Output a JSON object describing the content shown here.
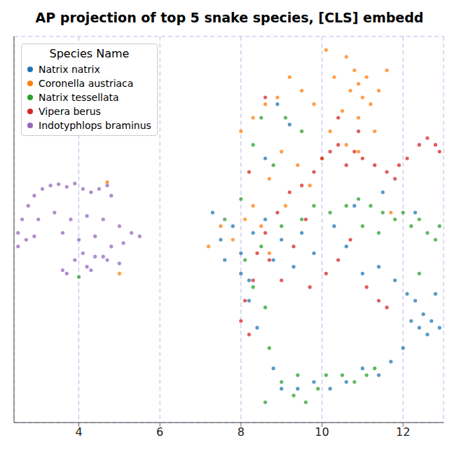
{
  "chart_data": {
    "type": "scatter",
    "title": "AP projection of top 5 snake species, [CLS] embedd",
    "legend_title": "Species Name",
    "legend": "upper left",
    "grid": true,
    "tick_labels": "x",
    "xlim": [
      2.4,
      13
    ],
    "xticks": [
      4,
      6,
      8,
      10,
      12
    ],
    "ylim": [
      2.5,
      8.2
    ],
    "yticks": [
      3,
      4,
      5,
      6,
      7,
      8
    ],
    "series": [
      {
        "name": "Natrix natrix",
        "color": "#1f77b4",
        "values": [
          [
            7.3,
            5.6
          ],
          [
            7.5,
            5.2
          ],
          [
            7.6,
            4.9
          ],
          [
            7.8,
            5.4
          ],
          [
            8.0,
            5.0
          ],
          [
            8.2,
            4.6
          ],
          [
            8.3,
            5.3
          ],
          [
            8.6,
            5.5
          ],
          [
            8.8,
            4.9
          ],
          [
            9.0,
            5.2
          ],
          [
            9.3,
            4.8
          ],
          [
            9.5,
            5.3
          ],
          [
            9.8,
            5.0
          ],
          [
            10.3,
            5.4
          ],
          [
            10.6,
            5.1
          ],
          [
            11.0,
            4.7
          ],
          [
            11.4,
            4.8
          ],
          [
            11.8,
            4.6
          ],
          [
            12.1,
            4.4
          ],
          [
            12.3,
            4.3
          ],
          [
            12.5,
            4.1
          ],
          [
            12.7,
            4.0
          ],
          [
            12.6,
            3.8
          ],
          [
            12.8,
            4.4
          ],
          [
            12.9,
            3.9
          ],
          [
            12.4,
            3.9
          ],
          [
            12.2,
            4.0
          ],
          [
            12.0,
            3.6
          ],
          [
            11.7,
            3.4
          ],
          [
            11.4,
            3.2
          ],
          [
            11.0,
            3.3
          ],
          [
            10.6,
            3.1
          ],
          [
            10.2,
            3.0
          ],
          [
            9.8,
            3.1
          ],
          [
            9.4,
            3.0
          ],
          [
            9.0,
            3.0
          ],
          [
            8.8,
            3.3
          ],
          [
            8.4,
            3.9
          ],
          [
            8.2,
            4.3
          ],
          [
            8.0,
            4.7
          ],
          [
            9.2,
            6.9
          ],
          [
            8.9,
            7.2
          ],
          [
            8.6,
            6.4
          ],
          [
            10.8,
            5.7
          ],
          [
            12.3,
            5.6
          ],
          [
            11.5,
            5.9
          ]
        ]
      },
      {
        "name": "Coronella austriaca",
        "color": "#ff7f0e",
        "values": [
          [
            10.1,
            8.0
          ],
          [
            10.3,
            7.6
          ],
          [
            10.6,
            7.9
          ],
          [
            10.8,
            7.7
          ],
          [
            10.9,
            7.5
          ],
          [
            11.0,
            7.3
          ],
          [
            11.1,
            7.6
          ],
          [
            11.2,
            7.2
          ],
          [
            10.7,
            7.4
          ],
          [
            10.5,
            7.1
          ],
          [
            10.9,
            7.0
          ],
          [
            11.6,
            7.7
          ],
          [
            11.4,
            7.4
          ],
          [
            11.3,
            6.8
          ],
          [
            10.9,
            6.5
          ],
          [
            10.6,
            6.6
          ],
          [
            10.2,
            6.8
          ],
          [
            9.8,
            7.2
          ],
          [
            9.5,
            7.4
          ],
          [
            9.2,
            7.6
          ],
          [
            8.9,
            7.3
          ],
          [
            8.6,
            7.2
          ],
          [
            8.3,
            7.0
          ],
          [
            8.0,
            6.8
          ],
          [
            9.0,
            6.5
          ],
          [
            9.4,
            6.3
          ],
          [
            9.7,
            6.0
          ],
          [
            8.7,
            6.1
          ],
          [
            8.3,
            5.7
          ],
          [
            8.5,
            5.4
          ],
          [
            8.1,
            5.5
          ],
          [
            7.8,
            5.2
          ],
          [
            7.5,
            5.4
          ],
          [
            7.2,
            5.1
          ],
          [
            8.7,
            5.0
          ],
          [
            9.1,
            5.7
          ],
          [
            10.0,
            6.4
          ],
          [
            4.7,
            6.05
          ],
          [
            5.0,
            4.7
          ],
          [
            11.7,
            5.6
          ]
        ]
      },
      {
        "name": "Natrix tessellata",
        "color": "#2ca02c",
        "values": [
          [
            10.6,
            5.7
          ],
          [
            10.9,
            5.8
          ],
          [
            11.2,
            5.7
          ],
          [
            11.5,
            5.6
          ],
          [
            11.8,
            5.5
          ],
          [
            12.0,
            5.6
          ],
          [
            12.2,
            5.4
          ],
          [
            12.4,
            5.5
          ],
          [
            12.6,
            5.3
          ],
          [
            12.8,
            5.2
          ],
          [
            12.9,
            5.4
          ],
          [
            11.4,
            5.3
          ],
          [
            11.0,
            5.4
          ],
          [
            10.2,
            5.6
          ],
          [
            9.8,
            5.7
          ],
          [
            9.5,
            5.5
          ],
          [
            9.0,
            5.4
          ],
          [
            8.5,
            5.1
          ],
          [
            8.0,
            5.8
          ],
          [
            7.6,
            5.5
          ],
          [
            8.3,
            6.6
          ],
          [
            8.5,
            7.0
          ],
          [
            8.8,
            6.3
          ],
          [
            9.1,
            7.0
          ],
          [
            9.5,
            6.8
          ],
          [
            8.1,
            4.9
          ],
          [
            8.3,
            4.5
          ],
          [
            8.6,
            4.2
          ],
          [
            8.7,
            3.6
          ],
          [
            9.0,
            3.1
          ],
          [
            9.3,
            2.9
          ],
          [
            9.6,
            2.8
          ],
          [
            9.9,
            3.0
          ],
          [
            10.1,
            3.2
          ],
          [
            10.5,
            3.2
          ],
          [
            10.8,
            3.1
          ],
          [
            11.1,
            3.2
          ],
          [
            11.3,
            3.3
          ],
          [
            8.6,
            2.8
          ],
          [
            9.4,
            3.2
          ],
          [
            12.4,
            4.7
          ],
          [
            4.0,
            4.65
          ]
        ]
      },
      {
        "name": "Vipera berus",
        "color": "#d62728",
        "values": [
          [
            9.5,
            6.0
          ],
          [
            9.8,
            6.2
          ],
          [
            10.0,
            6.4
          ],
          [
            10.2,
            6.5
          ],
          [
            10.4,
            6.6
          ],
          [
            10.6,
            6.3
          ],
          [
            10.8,
            6.5
          ],
          [
            11.0,
            6.4
          ],
          [
            11.3,
            6.3
          ],
          [
            11.6,
            6.2
          ],
          [
            11.9,
            6.3
          ],
          [
            12.1,
            6.4
          ],
          [
            12.4,
            6.6
          ],
          [
            12.6,
            6.7
          ],
          [
            12.8,
            6.6
          ],
          [
            12.9,
            6.5
          ],
          [
            11.8,
            6.1
          ],
          [
            10.9,
            6.8
          ],
          [
            10.4,
            7.0
          ],
          [
            9.2,
            5.9
          ],
          [
            8.9,
            5.6
          ],
          [
            8.6,
            5.3
          ],
          [
            8.4,
            5.0
          ],
          [
            8.3,
            4.6
          ],
          [
            8.1,
            4.3
          ],
          [
            8.0,
            4.0
          ],
          [
            8.2,
            3.8
          ],
          [
            8.7,
            4.9
          ],
          [
            9.0,
            4.6
          ],
          [
            9.3,
            5.1
          ],
          [
            9.7,
            4.5
          ],
          [
            10.1,
            4.7
          ],
          [
            10.4,
            4.9
          ],
          [
            10.7,
            5.2
          ],
          [
            11.1,
            4.5
          ],
          [
            11.4,
            4.3
          ],
          [
            11.6,
            4.2
          ],
          [
            9.6,
            5.5
          ],
          [
            8.6,
            7.3
          ],
          [
            8.2,
            6.2
          ]
        ]
      },
      {
        "name": "Indotyphlops braminus",
        "color": "#9467bd",
        "values": [
          [
            2.5,
            5.3
          ],
          [
            2.6,
            5.5
          ],
          [
            2.75,
            5.7
          ],
          [
            2.9,
            5.85
          ],
          [
            3.1,
            5.95
          ],
          [
            3.3,
            6.0
          ],
          [
            3.5,
            6.02
          ],
          [
            3.7,
            5.98
          ],
          [
            3.9,
            6.03
          ],
          [
            4.1,
            5.95
          ],
          [
            4.3,
            5.9
          ],
          [
            4.5,
            5.95
          ],
          [
            4.7,
            6.0
          ],
          [
            4.8,
            5.85
          ],
          [
            3.0,
            5.5
          ],
          [
            3.4,
            5.6
          ],
          [
            3.8,
            5.5
          ],
          [
            4.2,
            5.55
          ],
          [
            4.6,
            5.5
          ],
          [
            5.0,
            5.4
          ],
          [
            5.3,
            5.3
          ],
          [
            5.5,
            5.25
          ],
          [
            3.6,
            5.3
          ],
          [
            4.0,
            5.2
          ],
          [
            4.4,
            5.25
          ],
          [
            4.8,
            5.1
          ],
          [
            5.1,
            5.15
          ],
          [
            2.5,
            5.1
          ],
          [
            2.7,
            5.2
          ],
          [
            2.9,
            5.25
          ],
          [
            4.1,
            5.0
          ],
          [
            4.4,
            4.95
          ],
          [
            4.7,
            4.9
          ],
          [
            5.0,
            4.85
          ],
          [
            4.2,
            4.8
          ],
          [
            3.9,
            4.9
          ],
          [
            4.3,
            4.75
          ],
          [
            3.6,
            4.75
          ],
          [
            3.7,
            4.7
          ],
          [
            4.6,
            4.95
          ]
        ]
      }
    ]
  }
}
